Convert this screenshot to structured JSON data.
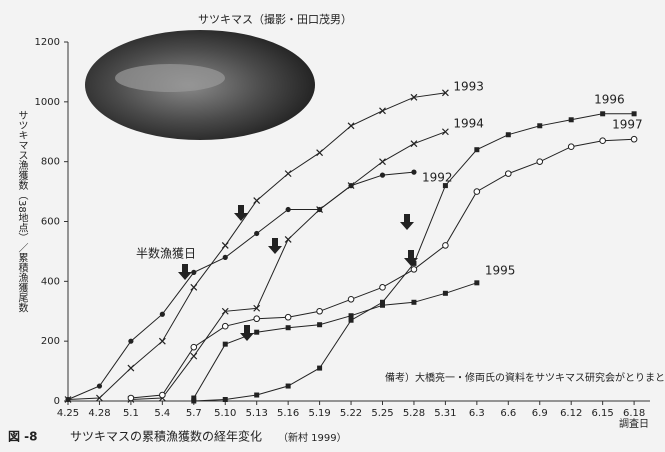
{
  "chart_data": {
    "type": "line",
    "photo_caption": "サツキマス（撮影・田口茂男）",
    "y_label": "サツキマス漁獲数（38地点）／累積漁獲尾数",
    "x_label": "調査日",
    "annotation": "半数漁獲日",
    "note": "備考）大橋亮一・修両氏の資料をサツキマス研究会がとりまとめた。",
    "figure_label": "図 -8",
    "caption": "サツキマスの累積漁獲数の経年変化",
    "source": "（新村 1999）",
    "categories": [
      "4.25",
      "4.28",
      "5.1",
      "5.4",
      "5.7",
      "5.10",
      "5.13",
      "5.16",
      "5.19",
      "5.22",
      "5.25",
      "5.28",
      "5.31",
      "6.3",
      "6.6",
      "6.9",
      "6.12",
      "6.15",
      "6.18"
    ],
    "ylim": [
      0,
      1200
    ],
    "yticks": [
      0,
      200,
      400,
      600,
      800,
      1000,
      1200
    ],
    "series": [
      {
        "name": "1992",
        "color": "#222222",
        "marker": "dot",
        "values": [
          5,
          50,
          200,
          290,
          430,
          480,
          560,
          640,
          640,
          720,
          755,
          765,
          null,
          null,
          null,
          null,
          null,
          null,
          null
        ]
      },
      {
        "name": "1993",
        "color": "#222222",
        "marker": "x",
        "values": [
          5,
          10,
          110,
          200,
          380,
          520,
          670,
          760,
          830,
          920,
          970,
          1015,
          1030,
          null,
          null,
          null,
          null,
          null,
          null
        ]
      },
      {
        "name": "1994",
        "color": "#222222",
        "marker": "x",
        "values": [
          null,
          null,
          5,
          10,
          150,
          300,
          310,
          540,
          640,
          720,
          800,
          860,
          900,
          null,
          null,
          null,
          null,
          null,
          null
        ]
      },
      {
        "name": "1995",
        "color": "#222222",
        "marker": "square",
        "values": [
          null,
          null,
          null,
          null,
          10,
          190,
          230,
          245,
          255,
          285,
          320,
          330,
          360,
          395,
          null,
          null,
          null,
          null,
          null
        ]
      },
      {
        "name": "1996",
        "color": "#222222",
        "marker": "square",
        "values": [
          null,
          null,
          null,
          null,
          0,
          5,
          20,
          50,
          110,
          270,
          330,
          460,
          720,
          840,
          890,
          920,
          940,
          960,
          960
        ]
      },
      {
        "name": "1997",
        "color": "#222222",
        "marker": "circle",
        "values": [
          null,
          null,
          10,
          20,
          180,
          250,
          275,
          280,
          300,
          340,
          380,
          440,
          520,
          700,
          760,
          800,
          850,
          870,
          875
        ]
      }
    ]
  }
}
